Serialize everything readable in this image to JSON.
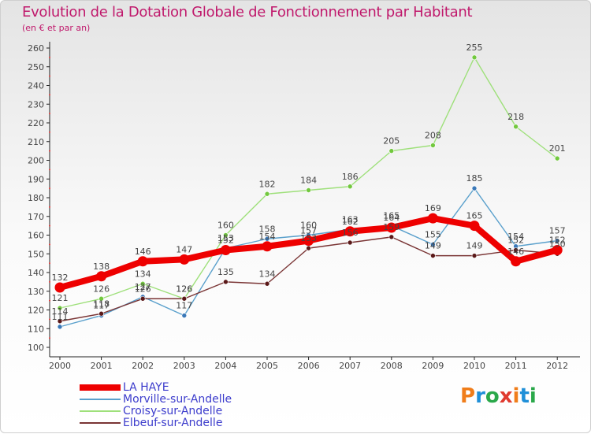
{
  "title": "Evolution de la Dotation Globale de Fonctionnement par Habitant",
  "subtitle": "(en € et par an)",
  "logo": {
    "text": "Proxiti",
    "colors": [
      "#f07d1a",
      "#1f8fd8",
      "#2aa84a",
      "#e03a2f",
      "#f07d1a",
      "#1f8fd8",
      "#2aa84a"
    ]
  },
  "chart_data": {
    "type": "line",
    "title": "Evolution de la Dotation Globale de Fonctionnement par Habitant",
    "subtitle": "(en € et par an)",
    "x": [
      "2000",
      "2001",
      "2002",
      "2003",
      "2004",
      "2005",
      "2006",
      "2007",
      "2008",
      "2009",
      "2010",
      "2011",
      "2012"
    ],
    "ylim": [
      100,
      260
    ],
    "yticks": [
      100,
      110,
      120,
      130,
      140,
      150,
      160,
      170,
      180,
      190,
      200,
      210,
      220,
      230,
      240,
      250,
      260
    ],
    "grid": false,
    "legend_position": "bottom-left",
    "series": [
      {
        "name": "LA HAYE",
        "color": "#ee0000",
        "marker": "#ee0000",
        "width": "heavy",
        "values": [
          132,
          138,
          146,
          147,
          152,
          154,
          157,
          162,
          164,
          169,
          165,
          146,
          152
        ]
      },
      {
        "name": "Morville-sur-Andelle",
        "color": "#5aa0cc",
        "marker": "#3a78b8",
        "width": "thin",
        "values": [
          111,
          117,
          127,
          117,
          153,
          158,
          160,
          163,
          165,
          155,
          185,
          154,
          157
        ]
      },
      {
        "name": "Croisy-sur-Andelle",
        "color": "#9ee07a",
        "marker": "#72c83e",
        "width": "thin",
        "values": [
          121,
          126,
          134,
          126,
          160,
          182,
          184,
          186,
          205,
          208,
          255,
          218,
          201
        ]
      },
      {
        "name": "Elbeuf-sur-Andelle",
        "color": "#7a3535",
        "marker": "#5a1818",
        "width": "thin",
        "values": [
          114,
          118,
          126,
          126,
          135,
          134,
          153,
          156,
          159,
          149,
          149,
          152,
          150
        ]
      }
    ],
    "data_labels": [
      {
        "series": "LA HAYE",
        "labels": [
          "132",
          "138",
          "146",
          "147",
          "152",
          "154",
          "157",
          "162",
          "164",
          "169",
          "165",
          "146",
          "152"
        ]
      },
      {
        "series": "Morville-sur-Andelle",
        "labels": [
          "111",
          "117",
          "127",
          "117",
          "153",
          "158",
          "160",
          "163",
          "165",
          "155",
          "185",
          "154",
          "157"
        ]
      },
      {
        "series": "Croisy-sur-Andelle",
        "labels": [
          "121",
          "126",
          "134",
          "126",
          "160",
          "182",
          "184",
          "186",
          "205",
          "208",
          "255",
          "218",
          "201"
        ]
      },
      {
        "series": "Elbeuf-sur-Andelle",
        "labels": [
          "114",
          "118",
          "126",
          "126",
          "135",
          "134",
          "153",
          "156",
          "159",
          "149",
          "149",
          "152",
          "150"
        ]
      }
    ]
  }
}
